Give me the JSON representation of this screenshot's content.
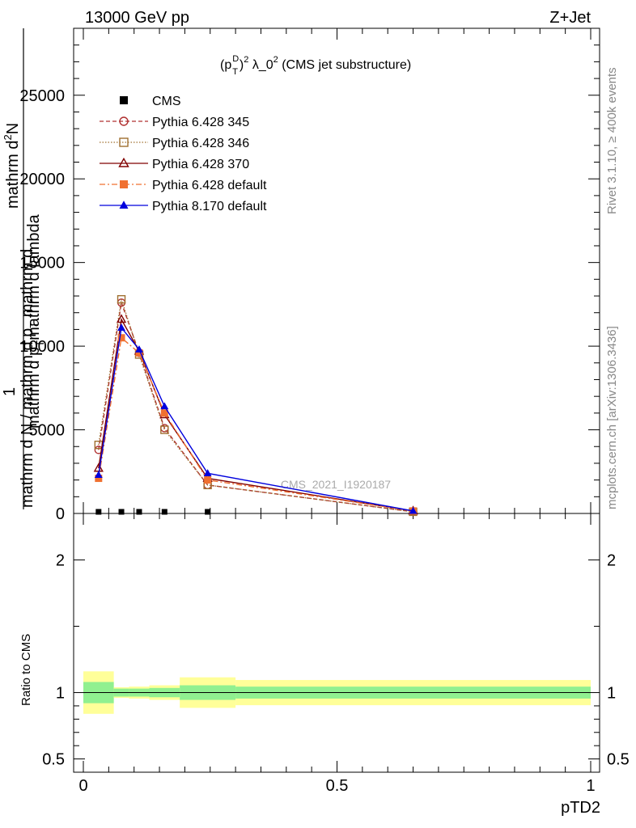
{
  "header": {
    "left": "13000 GeV pp",
    "right": "Z+Jet"
  },
  "side": {
    "rivet": "Rivet 3.1.10, ≥ 400k events",
    "mcplots": "mcplots.cern.ch [arXiv:1306.3436]"
  },
  "chart_data": [
    {
      "type": "line",
      "title": "(p_T^D)^2 λ_0^2 (CMS jet substructure)",
      "title_parts": [
        "(p",
        "D",
        "T",
        ")",
        "2",
        " λ_0",
        "2",
        " (CMS jet substructure)"
      ],
      "ylabel_top": "mathrm d",
      "ylabel_num_super": "2",
      "ylabel_num_N": "N",
      "ylabel_den": "mathrm d p",
      "ylabel_den_sub": "T",
      "ylabel_den_tail": "mathrm d lambda",
      "ylabel_prefix": "1",
      "ylabel_main": "mathrm d N / mathrm d p",
      "ylabel_main_sub": "T",
      "ylabel_main_tail": " mathrm d",
      "watermark": "CMS_2021_I1920187",
      "xlim": [
        0,
        1
      ],
      "ylim": [
        0,
        29000
      ],
      "yticks": [
        0,
        5000,
        10000,
        15000,
        20000,
        25000
      ],
      "yticklabels": [
        "0",
        "5000",
        "10000",
        "15000",
        "20000",
        "25000"
      ],
      "legend_position": "top-left",
      "series": [
        {
          "name": "CMS",
          "color": "#000000",
          "marker": "square-filled",
          "dash": "none",
          "x": [
            0.03,
            0.075,
            0.11,
            0.16,
            0.245,
            0.65
          ],
          "y": [
            0,
            0,
            0,
            0,
            0,
            0
          ]
        },
        {
          "name": "Pythia 6.428 345",
          "color": "#b03030",
          "marker": "circle-open",
          "dash": "5,3",
          "x": [
            0.03,
            0.075,
            0.11,
            0.16,
            0.245,
            0.65
          ],
          "y": [
            3800,
            12600,
            9600,
            5100,
            1700,
            100
          ]
        },
        {
          "name": "Pythia 6.428 346",
          "color": "#a07030",
          "marker": "square-open",
          "dash": "1.5,2",
          "x": [
            0.03,
            0.075,
            0.11,
            0.16,
            0.245,
            0.65
          ],
          "y": [
            4100,
            12800,
            9500,
            5000,
            1700,
            100
          ]
        },
        {
          "name": "Pythia 6.428 370",
          "color": "#800000",
          "marker": "triangle-open",
          "dash": "none",
          "x": [
            0.03,
            0.075,
            0.11,
            0.16,
            0.245,
            0.65
          ],
          "y": [
            2700,
            11600,
            9700,
            5900,
            2100,
            150
          ]
        },
        {
          "name": "Pythia 6.428 default",
          "color": "#f07030",
          "marker": "square-filled",
          "dash": "7,3,2,3",
          "x": [
            0.03,
            0.075,
            0.11,
            0.16,
            0.245,
            0.65
          ],
          "y": [
            2100,
            10500,
            9600,
            6000,
            2000,
            150
          ]
        },
        {
          "name": "Pythia 8.170 default",
          "color": "#0000dd",
          "marker": "triangle-filled",
          "dash": "none",
          "x": [
            0.03,
            0.075,
            0.11,
            0.16,
            0.245,
            0.65
          ],
          "y": [
            2300,
            11100,
            9800,
            6400,
            2400,
            150
          ]
        }
      ]
    },
    {
      "type": "area",
      "ylabel": "Ratio to CMS",
      "xlabel": "pTD2",
      "xlim": [
        0,
        1
      ],
      "ylim": [
        0.4,
        2.35
      ],
      "xticks": [
        0,
        0.5,
        1
      ],
      "xticklabels": [
        "0",
        "0.5",
        "1"
      ],
      "yticks": [
        0.5,
        1,
        2
      ],
      "yticklabels": [
        "0.5",
        "1",
        "2"
      ],
      "reference_line": 1,
      "bins": [
        {
          "x0": 0.0,
          "x1": 0.06,
          "band_inner": [
            0.92,
            1.08
          ],
          "band_outer": [
            0.84,
            1.16
          ]
        },
        {
          "x0": 0.06,
          "x1": 0.09,
          "band_inner": [
            0.97,
            1.03
          ],
          "band_outer": [
            0.96,
            1.04
          ]
        },
        {
          "x0": 0.09,
          "x1": 0.13,
          "band_inner": [
            0.97,
            1.03
          ],
          "band_outer": [
            0.955,
            1.045
          ]
        },
        {
          "x0": 0.13,
          "x1": 0.19,
          "band_inner": [
            0.965,
            1.035
          ],
          "band_outer": [
            0.945,
            1.055
          ]
        },
        {
          "x0": 0.19,
          "x1": 0.3,
          "band_inner": [
            0.945,
            1.055
          ],
          "band_outer": [
            0.885,
            1.115
          ]
        },
        {
          "x0": 0.3,
          "x1": 1.0,
          "band_inner": [
            0.955,
            1.045
          ],
          "band_outer": [
            0.905,
            1.095
          ]
        }
      ],
      "colors": {
        "inner": "#90f090",
        "outer": "#ffff99"
      }
    }
  ]
}
